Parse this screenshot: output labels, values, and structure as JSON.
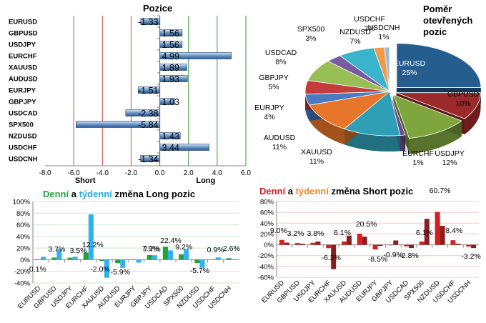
{
  "chart_data": [
    {
      "type": "bar",
      "orientation": "horizontal",
      "title": "Pozice",
      "categories": [
        "EURUSD",
        "GBPUSD",
        "USDJPY",
        "EURCHF",
        "XAUUSD",
        "AUDUSD",
        "EURJPY",
        "GBPJPY",
        "USDCAD",
        "SPX500",
        "NZDUSD",
        "USDCHF",
        "USDCNH"
      ],
      "values": [
        -1.33,
        1.56,
        1.56,
        4.99,
        1.89,
        1.93,
        -1.51,
        1.03,
        -2.38,
        -5.84,
        1.43,
        3.44,
        -1.34
      ],
      "labels": [
        "-1.33",
        "1.56",
        "1.56",
        "4.99",
        "1.89",
        "1.93",
        "-1.51",
        "1.03",
        "-2.38",
        "-5.84",
        "1.43",
        "3.44",
        "-1.34"
      ],
      "xlim": [
        -8,
        6
      ],
      "xticks": [
        "-8.0",
        "-6.0",
        "-4.0",
        "-2.0",
        "0.0",
        "2.0",
        "4.0",
        "6.0"
      ],
      "xtick_values": [
        -8,
        -6,
        -4,
        -2,
        0,
        2,
        4,
        6
      ],
      "axis_annotations": [
        "Short",
        "Long"
      ],
      "colors": {
        "bar": "#3a6fa8",
        "short_lines": "#d24a4a",
        "long_lines": "#3a9a3a"
      }
    },
    {
      "type": "pie",
      "title": "Poměr otevřených pozic",
      "slices": [
        {
          "label": "EURUSD",
          "value": 25,
          "pct": "25%",
          "color": "#255e8e"
        },
        {
          "label": "GBPUSD",
          "value": 10,
          "pct": "10%",
          "color": "#9b2b2b"
        },
        {
          "label": "USDJPY",
          "value": 12,
          "pct": "12%",
          "color": "#7ea53e"
        },
        {
          "label": "EURCHF",
          "value": 1,
          "pct": "1%",
          "color": "#6a4f8c"
        },
        {
          "label": "XAUUSD",
          "value": 11,
          "pct": "11%",
          "color": "#2f9fb6"
        },
        {
          "label": "AUDUSD",
          "value": 11,
          "pct": "11%",
          "color": "#e8762a"
        },
        {
          "label": "EURJPY",
          "value": 4,
          "pct": "4%",
          "color": "#4a7bc0"
        },
        {
          "label": "GBPJPY",
          "value": 5,
          "pct": "5%",
          "color": "#c43c3c"
        },
        {
          "label": "USDCAD",
          "value": 8,
          "pct": "8%",
          "color": "#98bf55"
        },
        {
          "label": "SPX500",
          "value": 3,
          "pct": "3%",
          "color": "#7a5aa0"
        },
        {
          "label": "NZDUSD",
          "value": 7,
          "pct": "7%",
          "color": "#39b4cc"
        },
        {
          "label": "USDCHF",
          "value": 2,
          "pct": "2%",
          "color": "#f29a47"
        },
        {
          "label": "USDCNH",
          "value": 1,
          "pct": "1%",
          "color": "#9fb9dd"
        }
      ]
    },
    {
      "type": "bar",
      "title": "Denní a týdenní změna Long pozic",
      "title_parts": [
        {
          "text": "Denní",
          "color": "#22a33a"
        },
        {
          "text": " a ",
          "color": "#000000"
        },
        {
          "text": "týdenní",
          "color": "#22a9e6"
        },
        {
          "text": " změna Long pozic",
          "color": "#000000"
        }
      ],
      "categories": [
        "EURUSD",
        "GBPUSD",
        "USDJPY",
        "EURCHF",
        "XAUUSD",
        "AUDUSD",
        "EURJPY",
        "GBPJPY",
        "USDCAD",
        "SPX500",
        "NZDUSD",
        "USDCHF",
        "USDCNH"
      ],
      "series": [
        {
          "name": "Denní",
          "values": [
            -0.1,
            3.7,
            3.5,
            12.2,
            -2.0,
            -5.9,
            0.3,
            7.9,
            22.4,
            9.2,
            -5.7,
            0.9,
            2.6
          ],
          "color": "#22a33a"
        },
        {
          "name": "týdenní",
          "values": [
            5,
            18,
            5,
            78,
            -31,
            -14,
            -5,
            7.7,
            16,
            18,
            -14,
            4,
            1
          ],
          "color": "#33b0ee"
        }
      ],
      "data_labels": [
        {
          "category": "EURUSD",
          "text": "-0.1%"
        },
        {
          "category": "GBPUSD",
          "text": "3.7%"
        },
        {
          "category": "USDJPY",
          "text": "3.5%"
        },
        {
          "category": "EURCHF",
          "text": "12.2%"
        },
        {
          "category": "XAUUSD",
          "text": "-2.0%"
        },
        {
          "category": "AUDUSD",
          "text": "-5.9%"
        },
        {
          "category": "GBPJPY",
          "text": "7.7%"
        },
        {
          "category": "GBPJPY",
          "text": "7.9%"
        },
        {
          "category": "USDCAD",
          "text": "22.4%"
        },
        {
          "category": "SPX500",
          "text": "9.2%"
        },
        {
          "category": "NZDUSD",
          "text": "-5.7%"
        },
        {
          "category": "USDCHF",
          "text": "0.9%"
        },
        {
          "category": "USDCNH",
          "text": "2.6%"
        }
      ],
      "ylim": [
        -40,
        100
      ],
      "yticks": [
        "100%",
        "80%",
        "60%",
        "40%",
        "20%",
        "0%",
        "-20%",
        "-40%"
      ],
      "ytick_values": [
        100,
        80,
        60,
        40,
        20,
        0,
        -20,
        -40
      ]
    },
    {
      "type": "bar",
      "title": "Denní a týdenní změna Short pozic",
      "title_parts": [
        {
          "text": "Denní",
          "color": "#d81e1e"
        },
        {
          "text": " a ",
          "color": "#000000"
        },
        {
          "text": "týdenní",
          "color": "#f08a2a"
        },
        {
          "text": " změna Short pozic",
          "color": "#000000"
        }
      ],
      "categories": [
        "EURUSD",
        "GBPUSD",
        "USDJPY",
        "EURCHF",
        "XAUUSD",
        "AUDUSD",
        "EURJPY",
        "GBPJPY",
        "USDCAD",
        "SPX500",
        "NZDUSD",
        "USDCHF",
        "USDCNH"
      ],
      "series": [
        {
          "name": "Denní",
          "values": [
            9.0,
            3.2,
            3.8,
            -6.2,
            6.1,
            20.5,
            -8.5,
            -0.9,
            -2.8,
            6.1,
            60.7,
            8.4,
            -3.2
          ],
          "color": "#d81e1e"
        },
        {
          "name": "týdenní",
          "values": [
            4,
            2,
            6,
            -45,
            17,
            15,
            -2,
            8,
            -6,
            48,
            35,
            2,
            -6
          ],
          "color": "#8a1e1e"
        }
      ],
      "data_labels": [
        {
          "category": "EURUSD",
          "text": "9.0%"
        },
        {
          "category": "GBPUSD",
          "text": "3.2%"
        },
        {
          "category": "USDJPY",
          "text": "3.8%"
        },
        {
          "category": "EURCHF",
          "text": "-6.2%"
        },
        {
          "category": "XAUUSD",
          "text": "6.1%"
        },
        {
          "category": "AUDUSD",
          "text": "20.5%"
        },
        {
          "category": "EURJPY",
          "text": "-8.5%"
        },
        {
          "category": "GBPJPY",
          "text": "-0.9%"
        },
        {
          "category": "USDCAD",
          "text": "-2.8%"
        },
        {
          "category": "SPX500",
          "text": "6.1%"
        },
        {
          "category": "NZDUSD",
          "text": "60.7%"
        },
        {
          "category": "USDCHF",
          "text": "8.4%"
        },
        {
          "category": "USDCNH",
          "text": "-3.2%"
        }
      ],
      "ylim": [
        -60,
        80
      ],
      "yticks": [
        "80%",
        "60%",
        "40%",
        "20%",
        "0%",
        "-20%",
        "-40%",
        "-60%"
      ],
      "ytick_values": [
        80,
        60,
        40,
        20,
        0,
        -20,
        -40,
        -60
      ]
    }
  ]
}
